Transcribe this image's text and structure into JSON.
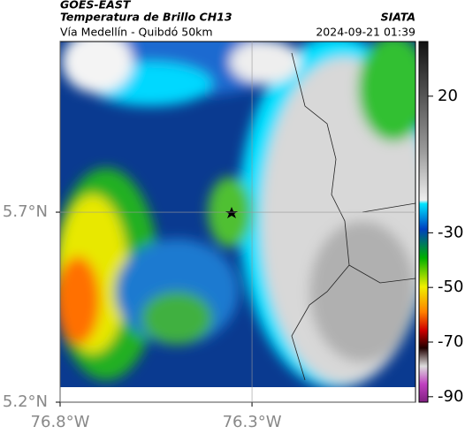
{
  "header": {
    "satellite": "GOES-EAST",
    "product": "Temperatura de Brillo CH13",
    "source": "SIATA",
    "route": "Vía Medellín - Quibdó 50km",
    "datetime": "2024-09-21 01:39"
  },
  "map": {
    "xlim": [
      -76.8,
      -75.874
    ],
    "ylim": [
      5.2,
      6.149
    ],
    "xticks": [
      {
        "value": -76.8,
        "label": "76.8°W"
      },
      {
        "value": -76.3,
        "label": "76.3°W"
      }
    ],
    "yticks": [
      {
        "value": 5.2,
        "label": "5.2°N"
      },
      {
        "value": 5.7,
        "label": "5.7°N"
      }
    ],
    "grid": true
  },
  "colorbar": {
    "lim": [
      40,
      -92
    ],
    "ticks": [
      20,
      -30,
      -50,
      -70,
      -90
    ]
  }
}
